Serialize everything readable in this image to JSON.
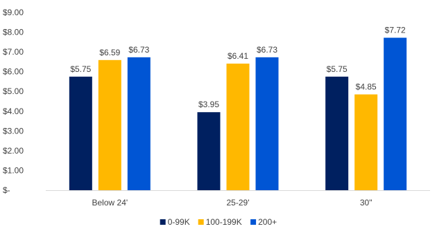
{
  "chart_data": {
    "type": "bar",
    "categories": [
      "Below 24'",
      "25-29'",
      "30\""
    ],
    "series": [
      {
        "name": "0-99K",
        "color": "#002060",
        "values": [
          5.75,
          3.95,
          5.75
        ]
      },
      {
        "name": "100-199K",
        "color": "#FFB800",
        "values": [
          6.59,
          6.41,
          4.85
        ]
      },
      {
        "name": "200+",
        "color": "#0055D4",
        "values": [
          6.73,
          6.73,
          7.72
        ]
      }
    ],
    "data_labels": [
      [
        "$5.75",
        "$3.95",
        "$5.75"
      ],
      [
        "$6.59",
        "$6.41",
        "$4.85"
      ],
      [
        "$6.73",
        "$6.73",
        "$7.72"
      ]
    ],
    "y_ticks": [
      0,
      1,
      2,
      3,
      4,
      5,
      6,
      7,
      8,
      9
    ],
    "y_tick_labels": [
      "$-",
      "$1.00",
      "$2.00",
      "$3.00",
      "$4.00",
      "$5.00",
      "$6.00",
      "$7.00",
      "$8.00",
      "$9.00"
    ],
    "ylim": [
      0,
      9
    ],
    "grid": false,
    "legend_position": "bottom",
    "title": "",
    "xlabel": "",
    "ylabel": ""
  }
}
